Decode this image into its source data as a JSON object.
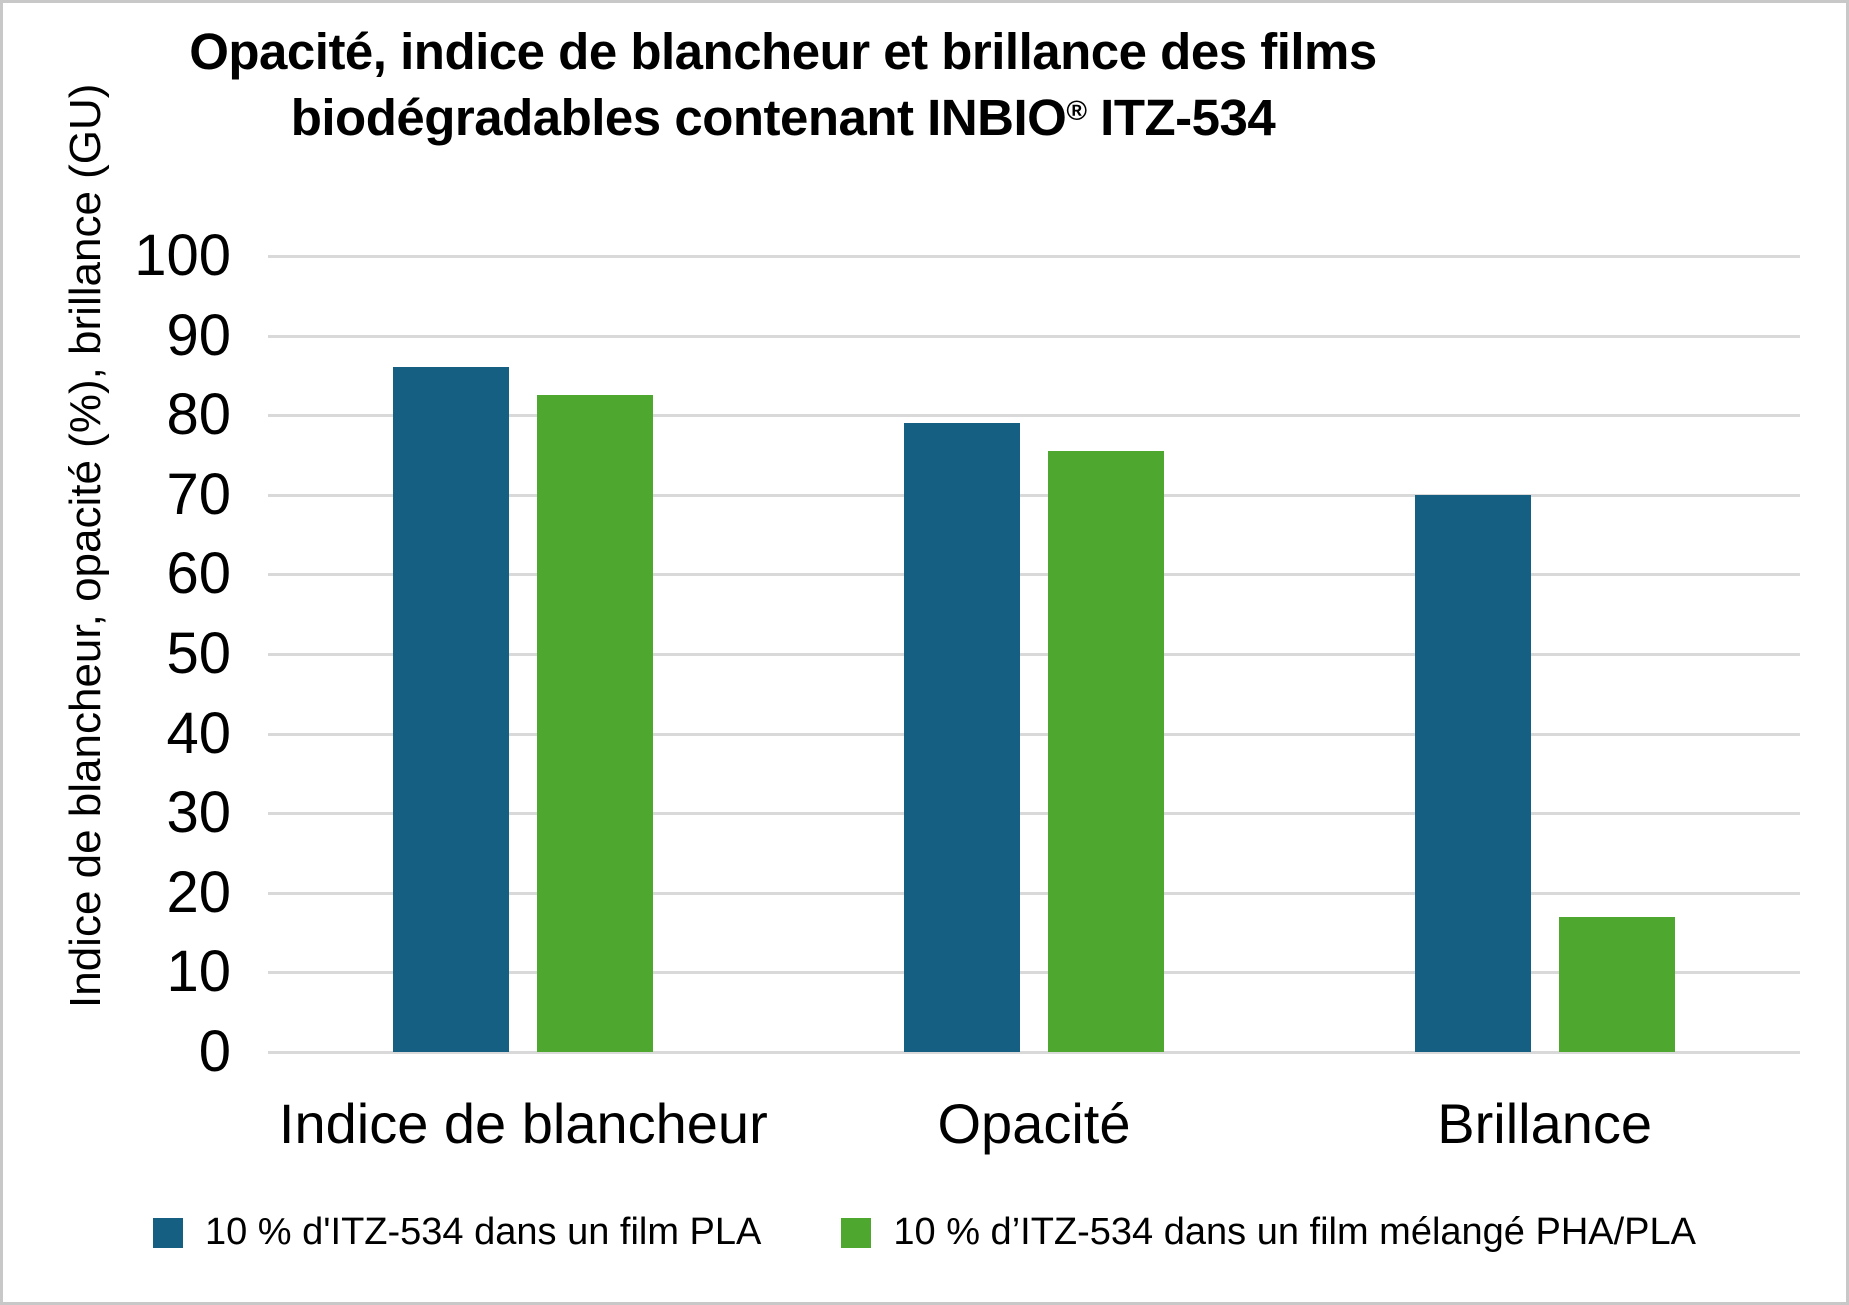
{
  "frame": {
    "background_color": "#ffffff",
    "border_color": "#c8c8c8"
  },
  "title": {
    "line1": "Opacité, indice de blancheur et brillance des films",
    "line2_before_reg": "biodégradables contenant INBIO",
    "registered_mark": "®",
    "line2_after_reg": " ITZ-534"
  },
  "y_axis": {
    "label": "Indice de blancheur, opacité (%), brillance (GU)",
    "ticks": [
      100,
      90,
      80,
      70,
      60,
      50,
      40,
      30,
      20,
      10,
      0
    ]
  },
  "chart_data": {
    "type": "bar",
    "title": "Opacité, indice de blancheur et brillance des films biodégradables contenant INBIO® ITZ-534",
    "categories": [
      "Indice de blancheur",
      "Opacité",
      "Brillance"
    ],
    "series": [
      {
        "name": "10 % d'ITZ-534 dans un film PLA",
        "color": "#156082",
        "values": [
          86,
          79,
          70
        ]
      },
      {
        "name": "10 % d’ITZ-534 dans un film mélangé PHA/PLA",
        "color": "#4EA72E",
        "values": [
          82.5,
          75.5,
          17
        ]
      }
    ],
    "xlabel": "",
    "ylabel": "Indice de blancheur, opacité (%), brillance (GU)",
    "ylim": [
      0,
      100
    ],
    "ytick_step": 10,
    "grid": "horizontal",
    "gridline_color": "#d9d9d9",
    "legend_position": "bottom"
  }
}
